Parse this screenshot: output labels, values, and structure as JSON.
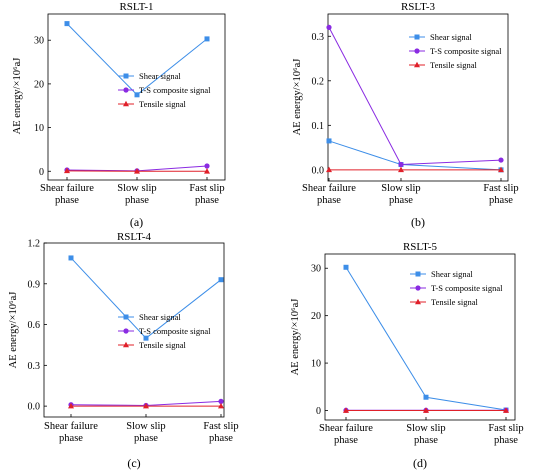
{
  "chart_data": [
    {
      "type": "line",
      "panel_label": "(a)",
      "title": "RSLT-1",
      "ylabel": "AE energy/×10⁶aJ",
      "categories": [
        "Shear failure phase",
        "Slow slip phase",
        "Fast slip phase"
      ],
      "ylim": [
        -2,
        36
      ],
      "yticks": [
        0,
        10,
        20,
        30
      ],
      "series": [
        {
          "name": "Shear signal",
          "values": [
            33.8,
            17.5,
            30.3
          ]
        },
        {
          "name": "T-S composite signal",
          "values": [
            0.3,
            0.1,
            1.2
          ]
        },
        {
          "name": "Tensile signal",
          "values": [
            0.1,
            0.0,
            0.0
          ]
        }
      ],
      "legend": "center-right",
      "grid": false
    },
    {
      "type": "line",
      "panel_label": "(b)",
      "title": "RSLT-3",
      "ylabel": "AE energy/×10⁶aJ",
      "categories": [
        "Shear failure phase",
        "Slow slip phase",
        "Fast slip phase"
      ],
      "ylim": [
        -0.025,
        0.35
      ],
      "yticks": [
        0.0,
        0.1,
        0.2,
        0.3
      ],
      "series": [
        {
          "name": "Shear signal",
          "values": [
            0.065,
            0.012,
            0.0
          ]
        },
        {
          "name": "T-S composite signal",
          "values": [
            0.32,
            0.012,
            0.022
          ]
        },
        {
          "name": "Tensile signal",
          "values": [
            0.0,
            0.0,
            0.0
          ]
        }
      ],
      "legend": "top-right",
      "grid": false
    },
    {
      "type": "line",
      "panel_label": "(c)",
      "title": "RSLT-4",
      "ylabel": "AE energy/×10⁶aJ",
      "categories": [
        "Shear failure phase",
        "Slow slip phase",
        "Fast slip phase"
      ],
      "ylim": [
        -0.08,
        1.2
      ],
      "yticks": [
        0.0,
        0.3,
        0.6,
        0.9,
        1.2
      ],
      "series": [
        {
          "name": "Shear signal",
          "values": [
            1.09,
            0.5,
            0.93
          ]
        },
        {
          "name": "T-S composite signal",
          "values": [
            0.01,
            0.005,
            0.035
          ]
        },
        {
          "name": "Tensile signal",
          "values": [
            0.0,
            0.0,
            0.0
          ]
        }
      ],
      "legend": "center-right",
      "grid": false
    },
    {
      "type": "line",
      "panel_label": "(d)",
      "title": "RSLT-5",
      "ylabel": "AE energy/×10⁶aJ",
      "categories": [
        "Shear failure phase",
        "Slow slip phase",
        "Fast slip phase"
      ],
      "ylim": [
        -2,
        33
      ],
      "yticks": [
        0,
        10,
        20,
        30
      ],
      "series": [
        {
          "name": "Shear signal",
          "values": [
            30.2,
            2.8,
            0.1
          ]
        },
        {
          "name": "T-S composite signal",
          "values": [
            0.05,
            0.05,
            0.05
          ]
        },
        {
          "name": "Tensile signal",
          "values": [
            0.0,
            0.0,
            0.0
          ]
        }
      ],
      "legend": "top-right",
      "grid": false
    }
  ],
  "colors": {
    "Shear signal": "#3d8ee8",
    "T-S composite signal": "#8a2be2",
    "Tensile signal": "#e0202a"
  },
  "markers": {
    "Shear signal": "square",
    "T-S composite signal": "circle",
    "Tensile signal": "triangle"
  }
}
